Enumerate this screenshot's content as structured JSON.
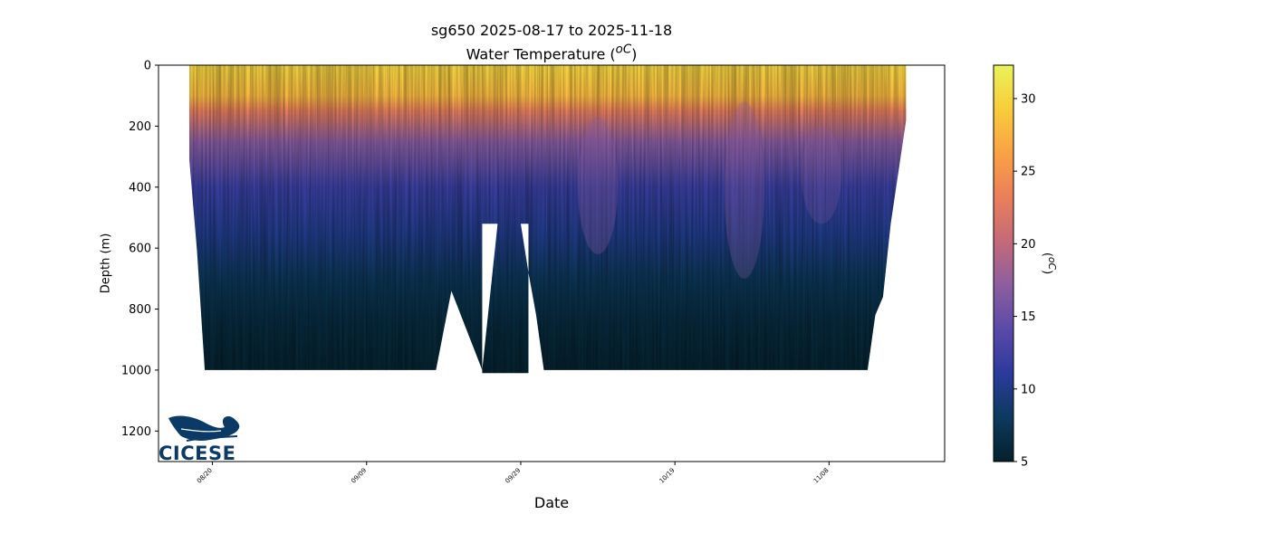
{
  "chart_data": {
    "type": "heatmap",
    "title": "sg650 2025-08-17 to 2025-11-18",
    "subtitle": "Water Temperature (",
    "subtitle_unit": "oC",
    "xlabel": "Date",
    "ylabel": "Depth (m)",
    "colorbar_label": "(",
    "colorbar_unit": "oC",
    "x_ticks": [
      "08/20",
      "09/09",
      "09/29",
      "10/19",
      "11/08"
    ],
    "x_tick_dates": [
      "2025-08-20",
      "2025-09-09",
      "2025-09-29",
      "2025-10-19",
      "2025-11-08"
    ],
    "xlim": [
      "2025-08-13",
      "2025-11-23"
    ],
    "y_ticks": [
      0,
      200,
      400,
      600,
      800,
      1000,
      1200
    ],
    "ylim": [
      1300,
      0
    ],
    "y_inverted": true,
    "colorbar_ticks": [
      5,
      10,
      15,
      20,
      25,
      30
    ],
    "colorbar_range": [
      5,
      32.3
    ],
    "colormap": "thermal",
    "colormap_stops": [
      "#04202c",
      "#0c3a5e",
      "#2b3a9c",
      "#5a49a8",
      "#8c5ea0",
      "#c46a78",
      "#ea7f5a",
      "#f9a244",
      "#f8cc3b",
      "#e9f35a"
    ],
    "gaps": [
      {
        "from": "2025-09-24",
        "to": "2025-09-30",
        "below_depth": 520
      }
    ],
    "profile_max_depth": [
      {
        "date": "2025-08-17",
        "depth": 310
      },
      {
        "date": "2025-08-18",
        "depth": 610
      },
      {
        "date": "2025-08-19",
        "depth": 1000
      },
      {
        "date": "2025-09-18",
        "depth": 1000
      },
      {
        "date": "2025-09-20",
        "depth": 740
      },
      {
        "date": "2025-09-24",
        "depth": 1000
      },
      {
        "date": "2025-09-26",
        "depth": 520
      },
      {
        "date": "2025-09-29",
        "depth": 520
      },
      {
        "date": "2025-09-30",
        "depth": 680
      },
      {
        "date": "2025-10-01",
        "depth": 820
      },
      {
        "date": "2025-10-02",
        "depth": 1000
      },
      {
        "date": "2025-11-13",
        "depth": 1000
      },
      {
        "date": "2025-11-14",
        "depth": 820
      },
      {
        "date": "2025-11-15",
        "depth": 760
      },
      {
        "date": "2025-11-16",
        "depth": 520
      },
      {
        "date": "2025-11-18",
        "depth": 180
      }
    ],
    "temperature_profile": [
      {
        "depth": 0,
        "temp": 30.0
      },
      {
        "depth": 100,
        "temp": 28.0
      },
      {
        "depth": 150,
        "temp": 23.0
      },
      {
        "depth": 250,
        "temp": 17.0
      },
      {
        "depth": 400,
        "temp": 12.0
      },
      {
        "depth": 550,
        "temp": 10.0
      },
      {
        "depth": 700,
        "temp": 7.5
      },
      {
        "depth": 850,
        "temp": 6.0
      },
      {
        "depth": 1000,
        "temp": 5.2
      }
    ],
    "grid": false
  },
  "logo": {
    "text": "CICESE",
    "color": "#0b3a66"
  }
}
